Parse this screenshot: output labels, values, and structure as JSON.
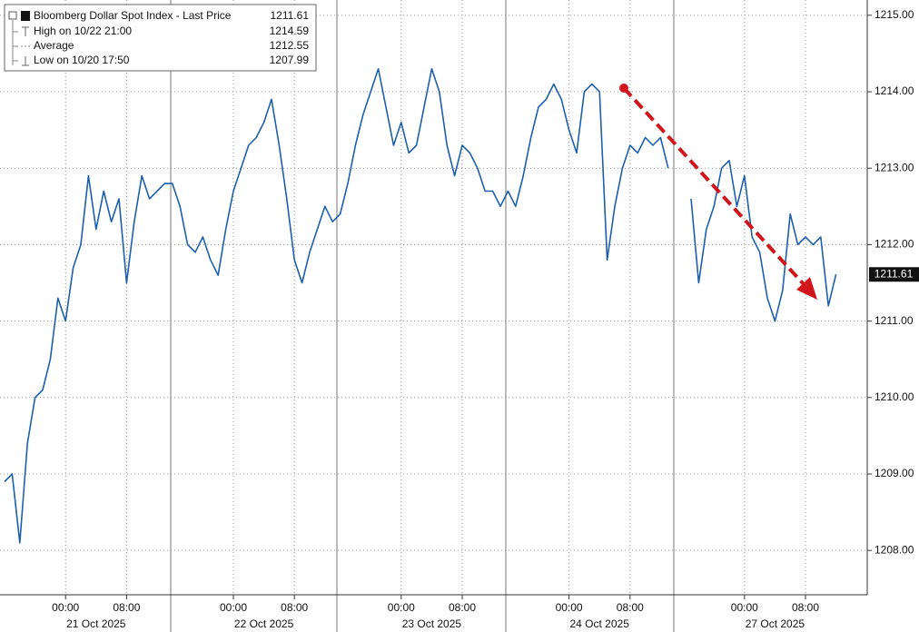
{
  "chart_data": {
    "type": "line",
    "legend": [
      {
        "name": "Bloomberg Dollar Spot Index - Last Price",
        "value": "1211.61"
      },
      {
        "name": "High on 10/22 21:00",
        "value": "1214.59"
      },
      {
        "name": "Average",
        "value": "1212.55"
      },
      {
        "name": "Low on 10/20 17:50",
        "value": "1207.99"
      }
    ],
    "last_price": 1211.61,
    "date_labels": [
      "21 Oct 2025",
      "22 Oct 2025",
      "23 Oct 2025",
      "24 Oct 2025",
      "27 Oct 2025"
    ],
    "categories": [
      null,
      null,
      null,
      null,
      null,
      null,
      null,
      null,
      "00:00",
      null,
      null,
      null,
      null,
      null,
      null,
      null,
      "08:00",
      null,
      null,
      null,
      null,
      null,
      null,
      null,
      null,
      null,
      null,
      null,
      null,
      null,
      "00:00",
      null,
      null,
      null,
      null,
      null,
      null,
      null,
      "08:00",
      null,
      null,
      null,
      null,
      null,
      null,
      null,
      null,
      null,
      null,
      null,
      null,
      null,
      "00:00",
      null,
      null,
      null,
      null,
      null,
      null,
      null,
      "08:00",
      null,
      null,
      null,
      null,
      null,
      null,
      null,
      null,
      null,
      null,
      null,
      null,
      null,
      "00:00",
      null,
      null,
      null,
      null,
      null,
      null,
      null,
      "08:00",
      null,
      null,
      null,
      null,
      null,
      null,
      null,
      null,
      null,
      null,
      null,
      null,
      null,
      null,
      "00:00",
      null,
      null,
      null,
      null,
      null,
      null,
      null,
      "08:00",
      null,
      null,
      null,
      null
    ],
    "series": [
      {
        "name": "Bloomberg Dollar Spot Index - Last Price",
        "color": "#1c5fae",
        "values": [
          1208.9,
          1209.0,
          1208.1,
          1209.4,
          1210.0,
          1210.1,
          1210.5,
          1211.3,
          1211.0,
          1211.7,
          1212.0,
          1212.9,
          1212.2,
          1212.7,
          1212.3,
          1212.6,
          1211.5,
          1212.3,
          1212.9,
          1212.6,
          1212.7,
          1212.8,
          1212.8,
          1212.5,
          1212.0,
          1211.9,
          1212.1,
          1211.8,
          1211.6,
          1212.2,
          1212.7,
          1213.0,
          1213.3,
          1213.4,
          1213.6,
          1213.9,
          1213.3,
          1212.6,
          1211.8,
          1211.5,
          1211.9,
          1212.2,
          1212.5,
          1212.3,
          1212.4,
          1212.8,
          1213.3,
          1213.7,
          1214.0,
          1214.3,
          1213.8,
          1213.3,
          1213.6,
          1213.2,
          1213.3,
          1213.8,
          1214.3,
          1214.0,
          1213.3,
          1212.9,
          1213.3,
          1213.2,
          1213.0,
          1212.7,
          1212.7,
          1212.5,
          1212.7,
          1212.5,
          1212.9,
          1213.4,
          1213.8,
          1213.9,
          1214.1,
          1213.9,
          1213.5,
          1213.2,
          1214.0,
          1214.1,
          1214.0,
          1211.8,
          1212.5,
          1213.0,
          1213.3,
          1213.2,
          1213.4,
          1213.3,
          1213.4,
          1213.0,
          null,
          null,
          1212.6,
          1211.5,
          1212.2,
          1212.5,
          1213.0,
          1213.1,
          1212.5,
          1212.9,
          1212.1,
          1211.9,
          1211.3,
          1211.0,
          1211.4,
          1212.4,
          1212.0,
          1212.1,
          1212.0,
          1212.1,
          1211.2,
          1211.61
        ]
      }
    ],
    "ylim": [
      1207.42,
      1215.2
    ],
    "yticks": [
      {
        "value": 1208,
        "label": "1208.00"
      },
      {
        "value": 1209,
        "label": "1209.00"
      },
      {
        "value": 1210,
        "label": "1210.00"
      },
      {
        "value": 1211,
        "label": "1211.00"
      },
      {
        "value": 1212,
        "label": "1212.00"
      },
      {
        "value": 1213,
        "label": "1213.00"
      },
      {
        "value": 1214,
        "label": "1214.00"
      },
      {
        "value": 1215,
        "label": "1215.00"
      }
    ],
    "grid": true
  }
}
